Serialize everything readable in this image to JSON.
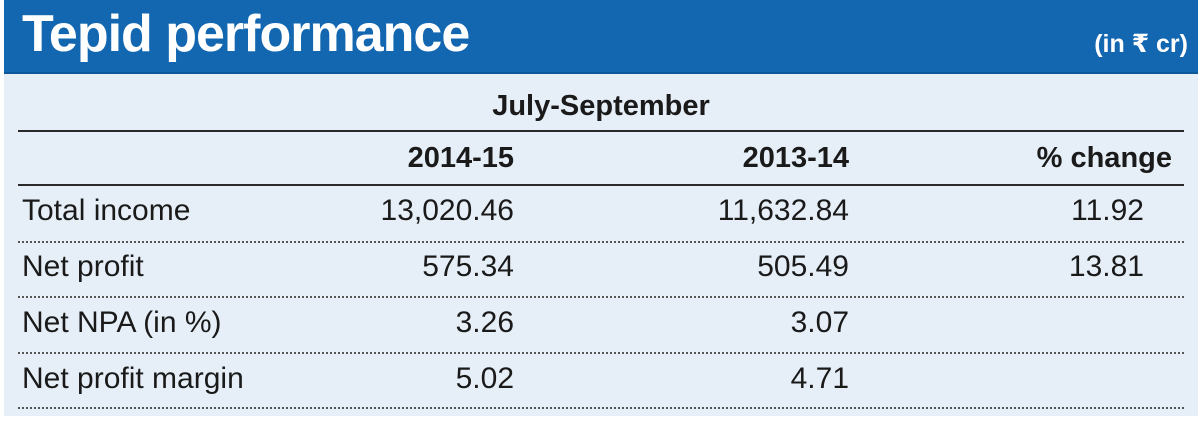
{
  "chart_data": {
    "type": "table",
    "title": "Tepid performance",
    "unit_note": "(in ₹ cr)",
    "period_label": "July-September",
    "columns": [
      "2014-15",
      "2013-14",
      "% change"
    ],
    "rows": [
      {
        "label": "Total income",
        "values": [
          "13,020.46",
          "11,632.84",
          "11.92"
        ]
      },
      {
        "label": "Net profit",
        "values": [
          "575.34",
          "505.49",
          "13.81"
        ]
      },
      {
        "label": "Net NPA (in %)",
        "values": [
          "3.26",
          "3.07",
          ""
        ]
      },
      {
        "label": "Net profit margin",
        "values": [
          "5.02",
          "4.71",
          ""
        ]
      }
    ]
  },
  "colors": {
    "header_bg": "#1367b0",
    "table_bg": "#e6eff7",
    "text": "#1a1a1a"
  }
}
